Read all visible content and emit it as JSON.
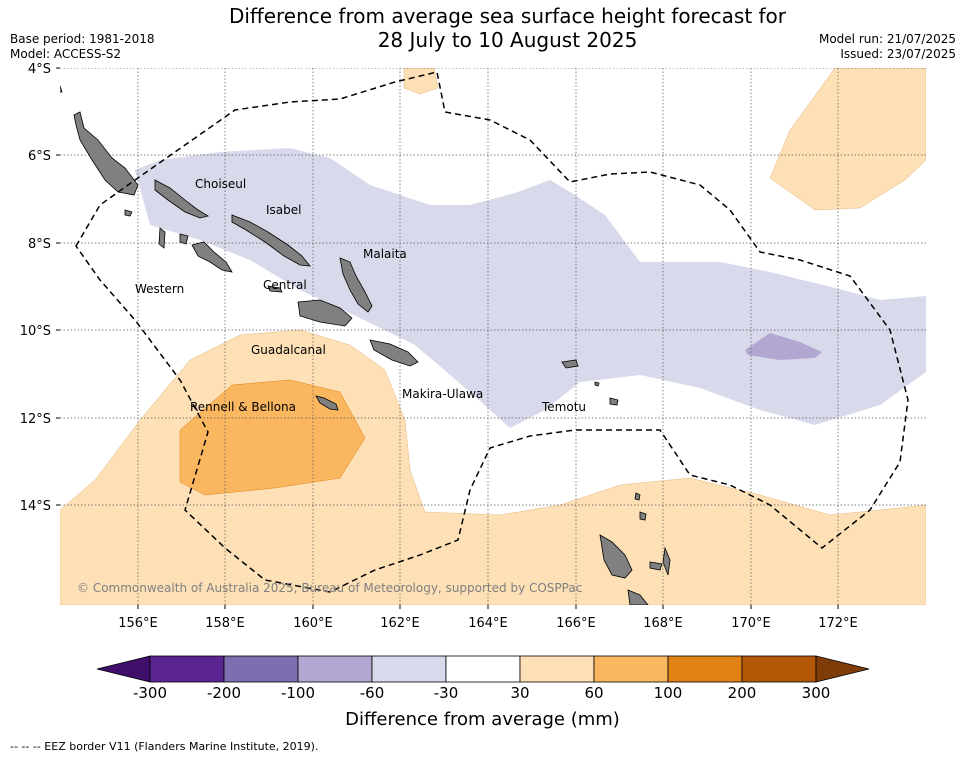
{
  "header": {
    "title_line1": "Difference from average sea surface height forecast for",
    "title_line2": "28 July to 10 August 2025",
    "base_period": "Base period: 1981-2018",
    "model": "Model: ACCESS-S2",
    "model_run": "Model run: 21/07/2025",
    "issued": "Issued: 23/07/2025"
  },
  "map": {
    "lat_labels": [
      "4°S",
      "6°S",
      "8°S",
      "10°S",
      "12°S",
      "14°S"
    ],
    "lon_labels": [
      "156°E",
      "158°E",
      "160°E",
      "162°E",
      "164°E",
      "166°E",
      "168°E",
      "170°E",
      "172°E"
    ],
    "regions": [
      "Choiseul",
      "Isabel",
      "Malaita",
      "Western",
      "Central",
      "Guadalcanal",
      "Rennell & Bellona",
      "Makira-Ulawa",
      "Temotu"
    ],
    "copyright": "© Commonwealth of Australia 2025, Bureau of Meteorology, supported by COSPPac",
    "colors": {
      "land": "#808080",
      "pos30": "#fde0b6",
      "pos60": "#fbb660",
      "neg30": "#d8d9ea",
      "neg60": "#b1a7d0"
    }
  },
  "colorbar": {
    "ticks": [
      "-300",
      "-200",
      "-100",
      "-60",
      "-30",
      "30",
      "60",
      "100",
      "200",
      "300"
    ],
    "colors": [
      "#3f0f6b",
      "#5a2590",
      "#7e6eaf",
      "#b1a7d0",
      "#d8d9ea",
      "#ffffff",
      "#fde0b6",
      "#fbb660",
      "#e08214",
      "#b35806",
      "#7f3b08"
    ],
    "label": "Difference from average (mm)"
  },
  "footer": "--  --  -- EEZ border V11 (Flanders Marine Institute, 2019)."
}
